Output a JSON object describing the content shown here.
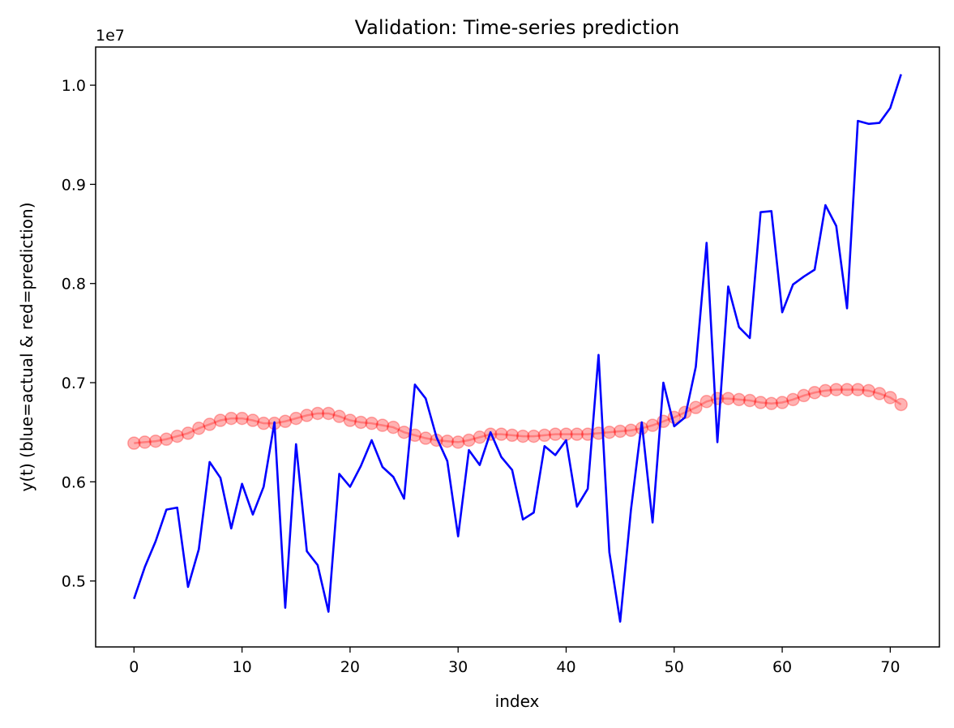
{
  "chart_data": {
    "type": "line",
    "title": "Validation: Time-series prediction",
    "xlabel": "index",
    "ylabel": "y(t) (blue=actual & red=prediction)",
    "y_offset_label": "1e7",
    "xlim": [
      -3.55,
      74.55
    ],
    "ylim": [
      0.4335,
      1.0385
    ],
    "x_ticks": [
      0,
      10,
      20,
      30,
      40,
      50,
      60,
      70
    ],
    "y_ticks": [
      0.5,
      0.6,
      0.7,
      0.8,
      0.9,
      1.0
    ],
    "y_tick_labels": [
      "0.5",
      "0.6",
      "0.7",
      "0.8",
      "0.9",
      "1.0"
    ],
    "grid": false,
    "series": [
      {
        "name": "actual",
        "color": "#0000ff",
        "style": "line",
        "values": [
          0.482,
          0.514,
          0.54,
          0.572,
          0.574,
          0.494,
          0.532,
          0.62,
          0.604,
          0.553,
          0.598,
          0.567,
          0.595,
          0.66,
          0.473,
          0.638,
          0.53,
          0.516,
          0.469,
          0.608,
          0.595,
          0.616,
          0.642,
          0.615,
          0.605,
          0.583,
          0.698,
          0.684,
          0.645,
          0.621,
          0.545,
          0.632,
          0.617,
          0.65,
          0.625,
          0.612,
          0.562,
          0.569,
          0.636,
          0.627,
          0.642,
          0.575,
          0.593,
          0.728,
          0.529,
          0.459,
          0.572,
          0.66,
          0.559,
          0.7,
          0.656,
          0.665,
          0.716,
          0.841,
          0.64,
          0.797,
          0.756,
          0.745,
          0.872,
          0.873,
          0.771,
          0.799,
          0.807,
          0.814,
          0.879,
          0.858,
          0.775,
          0.964,
          0.961,
          0.962,
          0.977,
          1.011
        ]
      },
      {
        "name": "prediction",
        "color": "#ff0000",
        "style": "line-markers",
        "values": [
          0.639,
          0.64,
          0.641,
          0.643,
          0.646,
          0.649,
          0.654,
          0.658,
          0.662,
          0.664,
          0.664,
          0.662,
          0.659,
          0.659,
          0.661,
          0.664,
          0.667,
          0.669,
          0.669,
          0.666,
          0.662,
          0.66,
          0.659,
          0.657,
          0.655,
          0.65,
          0.647,
          0.644,
          0.642,
          0.641,
          0.64,
          0.642,
          0.645,
          0.648,
          0.648,
          0.647,
          0.646,
          0.646,
          0.647,
          0.648,
          0.648,
          0.648,
          0.648,
          0.649,
          0.65,
          0.651,
          0.652,
          0.654,
          0.657,
          0.661,
          0.665,
          0.67,
          0.675,
          0.681,
          0.684,
          0.684,
          0.683,
          0.682,
          0.68,
          0.679,
          0.68,
          0.683,
          0.687,
          0.69,
          0.692,
          0.693,
          0.693,
          0.693,
          0.692,
          0.689,
          0.685,
          0.678
        ]
      }
    ]
  }
}
